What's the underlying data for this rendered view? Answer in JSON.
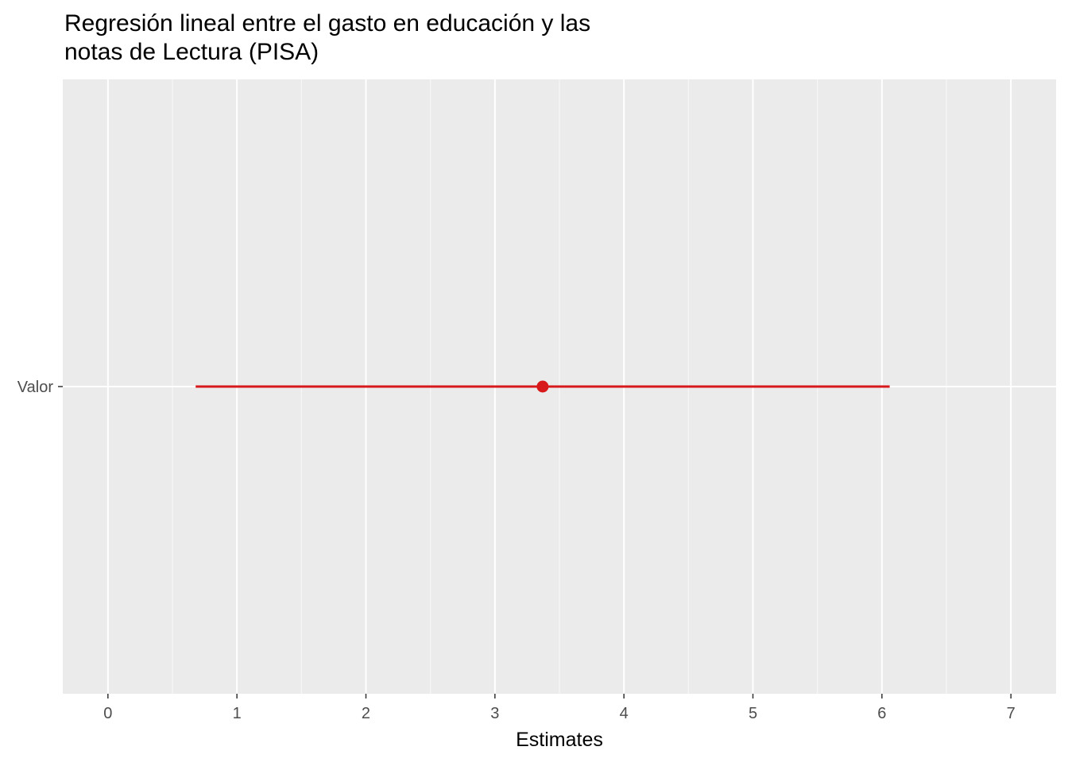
{
  "chart_data": {
    "type": "scatter",
    "title_lines": [
      "Regresión lineal entre el gasto en educación y las",
      "notas de Lectura (PISA)"
    ],
    "xlabel": "Estimates",
    "ylabel": "",
    "xlim": [
      -0.35,
      7.35
    ],
    "x_ticks": [
      0,
      1,
      2,
      3,
      4,
      5,
      6,
      7
    ],
    "categories": [
      "Valor"
    ],
    "estimates": [
      {
        "term": "Valor",
        "estimate": 3.37,
        "conf_low": 0.68,
        "conf_high": 6.06
      }
    ],
    "grid": true,
    "legend": "none",
    "colors": {
      "panel_background": "#ebebeb",
      "grid_major": "#ffffff",
      "grid_minor": "#f7f7f7",
      "estimate": "#d7191c",
      "tick_text": "#4d4d4d",
      "tick_mark": "#333333"
    }
  }
}
